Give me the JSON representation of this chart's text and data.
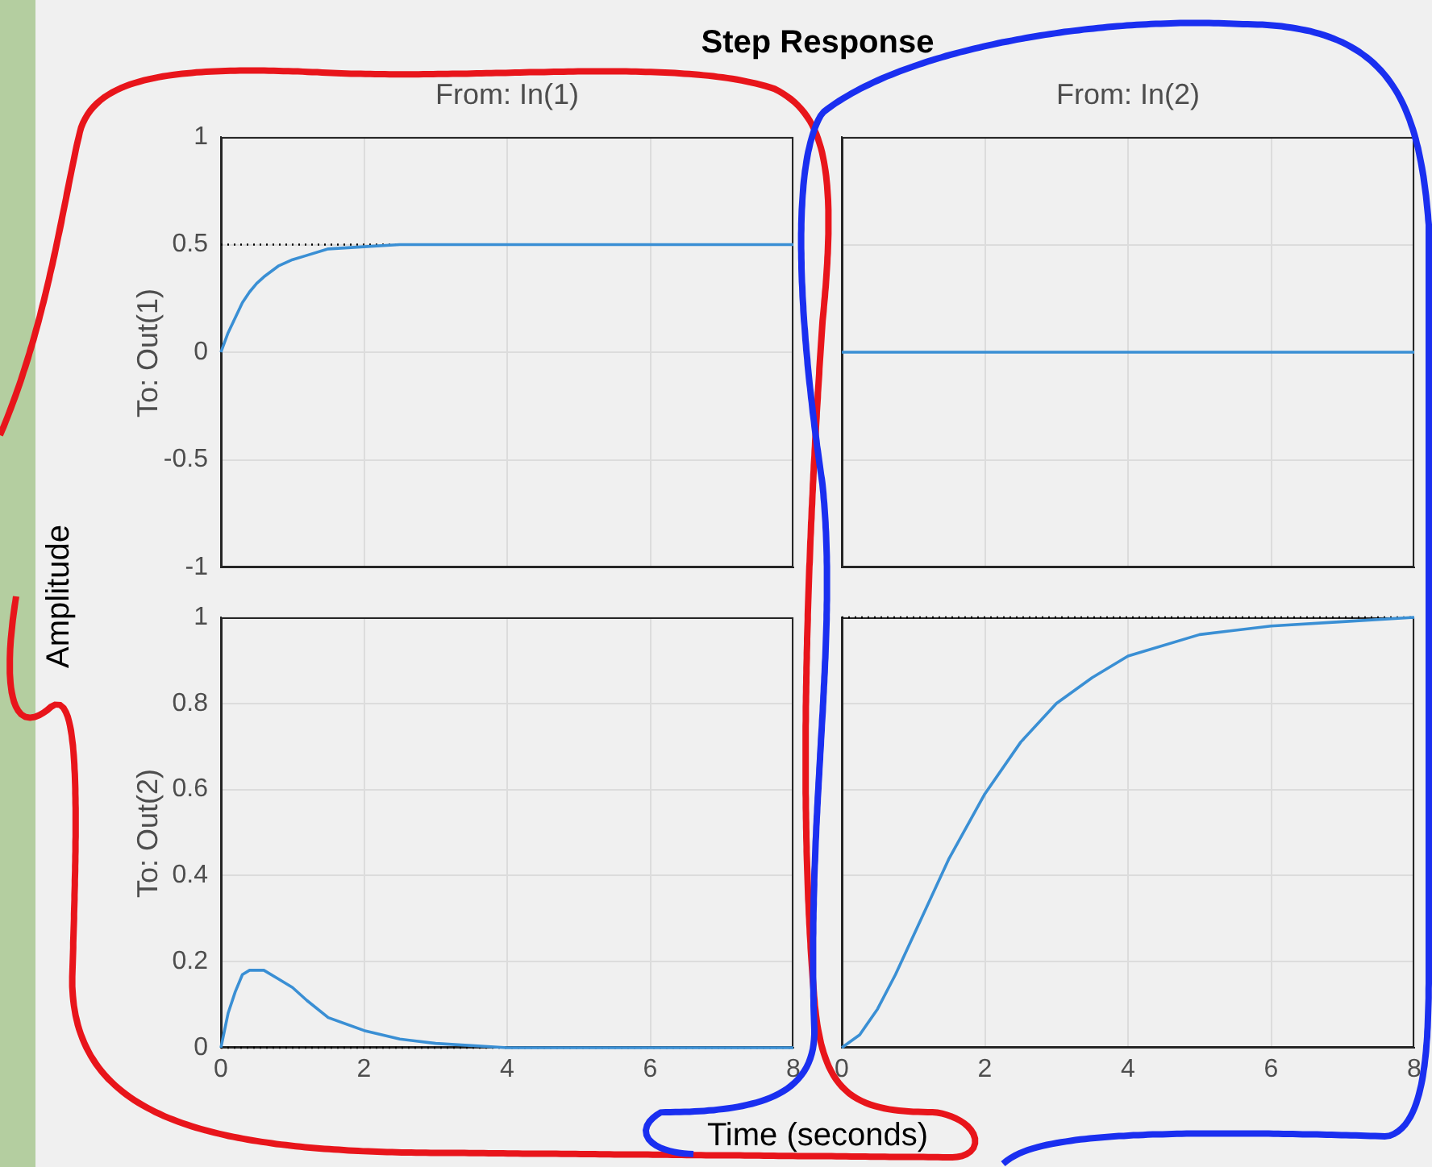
{
  "chart_data": [
    {
      "type": "other",
      "title": "Step Response",
      "xlabel": "Time (seconds)",
      "ylabel": "Amplitude"
    },
    {
      "type": "line",
      "title": "From: In(1)",
      "ylabel": "To: Out(1)",
      "xlim": [
        0,
        8
      ],
      "xticks": [
        0,
        2,
        4,
        6,
        8
      ],
      "ylim": [
        -1,
        1
      ],
      "yticks": [
        -1,
        -0.5,
        0,
        0.5,
        1
      ],
      "tick_labels": "y",
      "grid": true,
      "series": [
        {
          "color": "#3a8fd4",
          "x": [
            0,
            0.1,
            0.2,
            0.3,
            0.4,
            0.5,
            0.6,
            0.8,
            1,
            1.2,
            1.5,
            2,
            2.5,
            3,
            4,
            5,
            6,
            7,
            8
          ],
          "values": [
            0,
            0.09,
            0.16,
            0.23,
            0.28,
            0.32,
            0.35,
            0.4,
            0.43,
            0.45,
            0.48,
            0.49,
            0.5,
            0.5,
            0.5,
            0.5,
            0.5,
            0.5,
            0.5
          ]
        }
      ],
      "ref_lines": [
        {
          "axis": "y",
          "value": 0.5,
          "color": "#000000",
          "line_style": "dotted"
        }
      ]
    },
    {
      "type": "line",
      "title": "From: In(2)",
      "xlim": [
        0,
        8
      ],
      "xticks": [
        0,
        2,
        4,
        6,
        8
      ],
      "ylim": [
        -1,
        1
      ],
      "yticks": [
        -1,
        -0.5,
        0,
        0.5,
        1
      ],
      "tick_labels": false,
      "grid": true,
      "series": [
        {
          "color": "#3a8fd4",
          "x": [
            0,
            8
          ],
          "values": [
            0,
            0
          ]
        }
      ]
    },
    {
      "type": "line",
      "ylabel": "To: Out(2)",
      "xlim": [
        0,
        8
      ],
      "xticks": [
        0,
        2,
        4,
        6,
        8
      ],
      "ylim": [
        0,
        1
      ],
      "yticks": [
        0,
        0.2,
        0.4,
        0.6,
        0.8,
        1
      ],
      "grid": true,
      "series": [
        {
          "color": "#3a8fd4",
          "x": [
            0,
            0.1,
            0.2,
            0.3,
            0.4,
            0.5,
            0.6,
            0.8,
            1,
            1.2,
            1.5,
            2,
            2.5,
            3,
            4,
            5,
            6,
            7,
            8
          ],
          "values": [
            0,
            0.08,
            0.13,
            0.17,
            0.18,
            0.18,
            0.18,
            0.16,
            0.14,
            0.11,
            0.07,
            0.04,
            0.02,
            0.01,
            0,
            0,
            0,
            0,
            0
          ]
        }
      ],
      "ref_lines": [
        {
          "axis": "y",
          "value": 0,
          "color": "#000000",
          "line_style": "dotted"
        }
      ]
    },
    {
      "type": "line",
      "xlim": [
        0,
        8
      ],
      "xticks": [
        0,
        2,
        4,
        6,
        8
      ],
      "ylim": [
        0,
        1
      ],
      "yticks": [
        0,
        0.2,
        0.4,
        0.6,
        0.8,
        1
      ],
      "tick_labels": "x",
      "grid": true,
      "series": [
        {
          "color": "#3a8fd4",
          "x": [
            0,
            0.25,
            0.5,
            0.75,
            1,
            1.5,
            2,
            2.5,
            3,
            3.5,
            4,
            5,
            6,
            7,
            8
          ],
          "values": [
            0,
            0.03,
            0.09,
            0.17,
            0.26,
            0.44,
            0.59,
            0.71,
            0.8,
            0.86,
            0.91,
            0.96,
            0.98,
            0.99,
            1
          ]
        }
      ],
      "ref_lines": [
        {
          "axis": "y",
          "value": 1,
          "color": "#000000",
          "line_style": "dotted"
        }
      ]
    }
  ]
}
